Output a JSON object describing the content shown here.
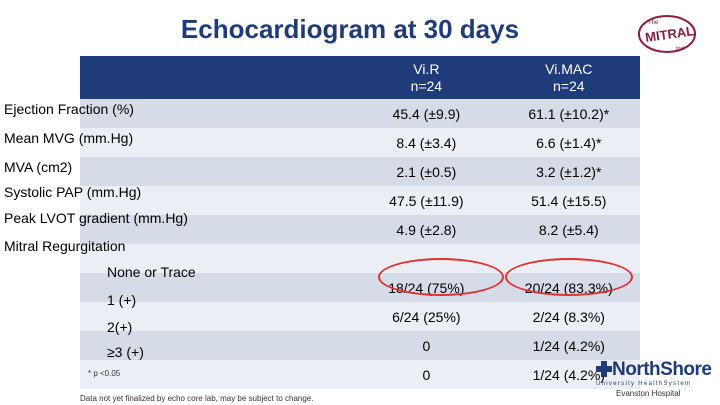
{
  "title": "Echocardiogram at 30 days",
  "logo": {
    "top": "The",
    "main": "MITRAL",
    "bottom": "trial"
  },
  "columns": [
    {
      "line1": "Vi.R",
      "line2": "n=24"
    },
    {
      "line1": "Vi.MAC",
      "line2": "n=24"
    }
  ],
  "rows": [
    {
      "label": "Ejection Fraction (%)",
      "a": "45.4 (±9.9)",
      "b": "61.1 (±10.2)*"
    },
    {
      "label": "Mean MVG (mm.Hg)",
      "a": "8.4 (±3.4)",
      "b": "6.6 (±1.4)*"
    },
    {
      "label": "MVA (cm2)",
      "a": "2.1 (±0.5)",
      "b": "3.2 (±1.2)*"
    },
    {
      "label": "Systolic PAP (mm.Hg)",
      "a": "47.5 (±11.9)",
      "b": "51.4 (±15.5)"
    },
    {
      "label": "Peak LVOT gradient (mm.Hg)",
      "a": "4.9 (±2.8)",
      "b": "8.2 (±5.4)"
    }
  ],
  "mr_section": "Mitral Regurgitation",
  "mr_rows": [
    {
      "label": "None or Trace",
      "a": "18/24 (75%)",
      "b": "20/24 (83.3%)"
    },
    {
      "label": "1 (+)",
      "a": "6/24 (25%)",
      "b": "2/24 (8.3%)"
    },
    {
      "label": "2(+)",
      "a": "0",
      "b": "1/24 (4.2%)"
    },
    {
      "label": "≥3 (+)",
      "a": "0",
      "b": "1/24 (4.2%)"
    }
  ],
  "footnote_p": "* p <0.05",
  "footnote_note": "Data not yet finalized by echo core lab, may be subject to change.",
  "northshore": {
    "name": "NorthShore",
    "system": "University HealthSystem",
    "hospital": "Evanston Hospital"
  },
  "colors": {
    "header": "#1f3b7a",
    "row_dark": "#d6dbe8",
    "row_light": "#ebeef4",
    "highlight": "#e03030"
  }
}
